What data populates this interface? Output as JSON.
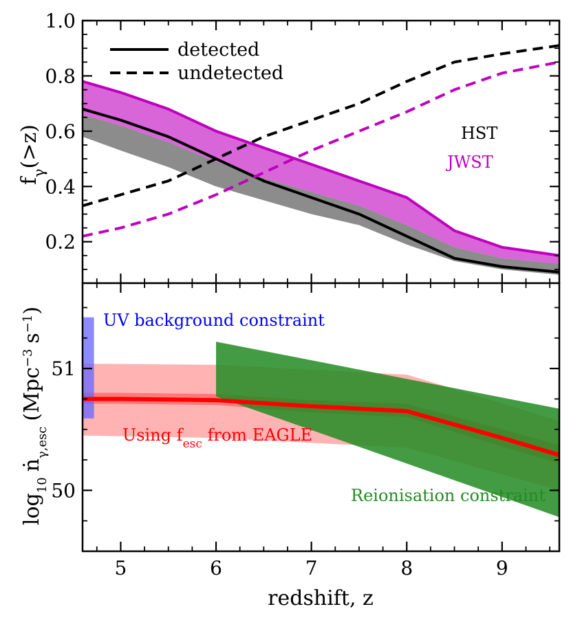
{
  "chart_data": [
    {
      "type": "line",
      "panel": "top",
      "ylabel": "f",
      "ylabel_sub": "γ",
      "ylabel_suffix": "(>z)",
      "xlim": [
        4.6,
        9.6
      ],
      "ylim": [
        0.05,
        1.0
      ],
      "yticks": [
        0.2,
        0.4,
        0.6,
        0.8,
        1.0
      ],
      "ytick_labels": [
        "0.2",
        "0.4",
        "0.6",
        "0.8",
        "1.0"
      ],
      "legend": {
        "position": "top-left",
        "entries": [
          {
            "label": "detected",
            "style": "solid"
          },
          {
            "label": "undetected",
            "style": "dashed"
          }
        ]
      },
      "annotations": [
        {
          "text": "HST",
          "color": "#000000"
        },
        {
          "text": "JWST",
          "color": "#bf00bf"
        }
      ],
      "series": [
        {
          "name": "HST detected",
          "color": "#000000",
          "style": "solid",
          "x": [
            4.6,
            5.0,
            5.5,
            6.0,
            6.5,
            7.0,
            7.5,
            8.0,
            8.5,
            9.0,
            9.6
          ],
          "y": [
            0.68,
            0.64,
            0.58,
            0.5,
            0.42,
            0.36,
            0.3,
            0.22,
            0.14,
            0.11,
            0.09
          ]
        },
        {
          "name": "HST undetected",
          "color": "#000000",
          "style": "dashed",
          "x": [
            4.6,
            5.0,
            5.5,
            6.0,
            6.5,
            7.0,
            7.5,
            8.0,
            8.5,
            9.0,
            9.6
          ],
          "y": [
            0.33,
            0.37,
            0.42,
            0.5,
            0.58,
            0.64,
            0.7,
            0.78,
            0.85,
            0.88,
            0.91
          ]
        },
        {
          "name": "JWST undetected",
          "color": "#bf00bf",
          "style": "dashed",
          "x": [
            4.6,
            5.0,
            5.5,
            6.0,
            6.5,
            7.0,
            7.5,
            8.0,
            8.5,
            9.0,
            9.6
          ],
          "y": [
            0.22,
            0.25,
            0.3,
            0.37,
            0.45,
            0.53,
            0.6,
            0.67,
            0.75,
            0.81,
            0.85
          ]
        },
        {
          "name": "JWST upper",
          "color": "#bf00bf",
          "style": "solid",
          "x": [
            4.6,
            5.0,
            5.5,
            6.0,
            6.5,
            7.0,
            7.5,
            8.0,
            8.5,
            9.0,
            9.6
          ],
          "y": [
            0.78,
            0.74,
            0.68,
            0.6,
            0.54,
            0.48,
            0.42,
            0.36,
            0.24,
            0.18,
            0.15
          ]
        }
      ],
      "bands": [
        {
          "name": "JWST band",
          "color": "#cc33cc",
          "x": [
            4.6,
            5.0,
            5.5,
            6.0,
            6.5,
            7.0,
            7.5,
            8.0,
            8.5,
            9.0,
            9.6
          ],
          "upper": [
            0.78,
            0.74,
            0.68,
            0.6,
            0.54,
            0.48,
            0.42,
            0.36,
            0.24,
            0.18,
            0.15
          ],
          "lower": [
            0.66,
            0.62,
            0.56,
            0.49,
            0.43,
            0.38,
            0.33,
            0.26,
            0.18,
            0.14,
            0.12
          ]
        },
        {
          "name": "HST band",
          "color": "#666666",
          "x": [
            4.6,
            5.0,
            5.5,
            6.0,
            6.5,
            7.0,
            7.5,
            8.0,
            8.5,
            9.0,
            9.6
          ],
          "upper": [
            0.66,
            0.62,
            0.56,
            0.49,
            0.43,
            0.38,
            0.33,
            0.26,
            0.18,
            0.14,
            0.12
          ],
          "lower": [
            0.58,
            0.53,
            0.47,
            0.4,
            0.35,
            0.3,
            0.26,
            0.19,
            0.13,
            0.1,
            0.08
          ]
        }
      ]
    },
    {
      "type": "line",
      "panel": "bottom",
      "ylabel": "log10 ṅγ,esc (Mpc−3 s−1)",
      "ylabel_parts": {
        "log": "log",
        "log_sub": "10",
        "n": "ṅ",
        "n_sub": "γ,esc",
        "open": "(Mpc",
        "sup1": "−3",
        "mid": "s",
        "sup2": "−1",
        "close": ")"
      },
      "xlabel": "redshift, z",
      "xlim": [
        4.6,
        9.6
      ],
      "ylim": [
        49.5,
        51.7
      ],
      "xticks": [
        5,
        6,
        7,
        8,
        9
      ],
      "xtick_labels": [
        "5",
        "6",
        "7",
        "8",
        "9"
      ],
      "yticks": [
        50,
        51
      ],
      "ytick_labels": [
        "50",
        "51"
      ],
      "annotations": [
        {
          "text": "UV background constraint",
          "color": "#0000ff"
        },
        {
          "text": "Using f",
          "sub": "esc",
          "suffix": " from EAGLE",
          "color": "#ff0000"
        },
        {
          "text": "Reionisation constraint",
          "color": "#228b22"
        }
      ],
      "series": [
        {
          "name": "EAGLE fesc",
          "color": "#ff0000",
          "style": "solid",
          "x": [
            4.6,
            5.0,
            6.0,
            7.0,
            8.0,
            9.0,
            9.6
          ],
          "y": [
            50.75,
            50.75,
            50.74,
            50.69,
            50.65,
            50.43,
            50.29
          ]
        }
      ],
      "bands": [
        {
          "name": "EAGLE wide",
          "color": "#ff9a9a",
          "x": [
            4.6,
            6.0,
            8.0,
            9.6
          ],
          "upper": [
            51.04,
            51.03,
            50.95,
            50.57
          ],
          "lower": [
            50.45,
            50.43,
            50.35,
            50.0
          ]
        },
        {
          "name": "EAGLE narrow",
          "color": "#ff6666",
          "x": [
            4.6,
            5.0,
            6.0,
            7.0,
            8.0,
            9.0,
            9.6
          ],
          "upper": [
            50.8,
            50.8,
            50.79,
            50.74,
            50.71,
            50.5,
            50.37
          ],
          "lower": [
            50.71,
            50.71,
            50.7,
            50.64,
            50.6,
            50.36,
            50.22
          ]
        },
        {
          "name": "Reionisation",
          "color": "#228b22",
          "opacity": 0.85,
          "x": [
            6.0,
            9.6
          ],
          "upper": [
            51.22,
            50.67
          ],
          "lower": [
            50.77,
            49.78
          ]
        },
        {
          "name": "UV background",
          "color": "#6666ff",
          "opacity": 0.75,
          "x": [
            4.6,
            4.72
          ],
          "upper": [
            51.42,
            51.42
          ],
          "lower": [
            50.59,
            50.59
          ]
        }
      ]
    }
  ]
}
